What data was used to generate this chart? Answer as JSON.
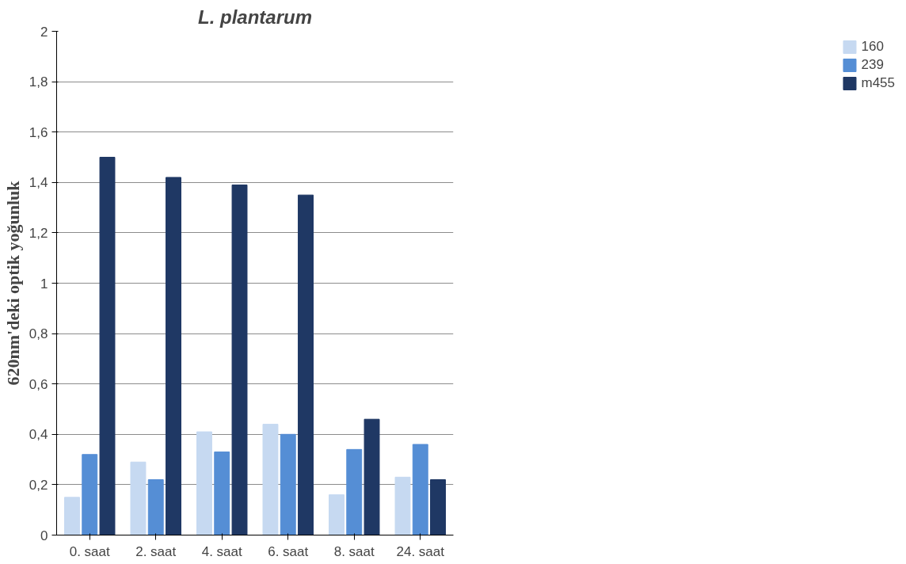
{
  "chart_data": {
    "type": "bar",
    "title": "L. plantarum",
    "ylabel": "620nm'deki optik yoğunluk",
    "categories": [
      "0. saat",
      "2. saat",
      "4. saat",
      "6. saat",
      "8. saat",
      "24. saat"
    ],
    "series": [
      {
        "name": "160",
        "color": "#c6d9f1",
        "values": [
          0.15,
          0.29,
          0.41,
          0.44,
          0.16,
          0.23
        ]
      },
      {
        "name": "239",
        "color": "#558ed5",
        "values": [
          0.32,
          0.22,
          0.33,
          0.4,
          0.34,
          0.36
        ]
      },
      {
        "name": "m455",
        "color": "#1f3864",
        "values": [
          1.5,
          1.42,
          1.39,
          1.35,
          0.46,
          0.22
        ]
      }
    ],
    "ylim": [
      0,
      2
    ],
    "yticks": [
      {
        "value": 0,
        "label": "0"
      },
      {
        "value": 0.2,
        "label": "0,2"
      },
      {
        "value": 0.4,
        "label": "0,4"
      },
      {
        "value": 0.6,
        "label": "0,6"
      },
      {
        "value": 0.8,
        "label": "0,8"
      },
      {
        "value": 1,
        "label": "1"
      },
      {
        "value": 1.2,
        "label": "1,2"
      },
      {
        "value": 1.4,
        "label": "1,4"
      },
      {
        "value": 1.6,
        "label": "1,6"
      },
      {
        "value": 1.8,
        "label": "1,8"
      },
      {
        "value": 2,
        "label": "2"
      }
    ],
    "grid": "y",
    "legend": "right"
  }
}
